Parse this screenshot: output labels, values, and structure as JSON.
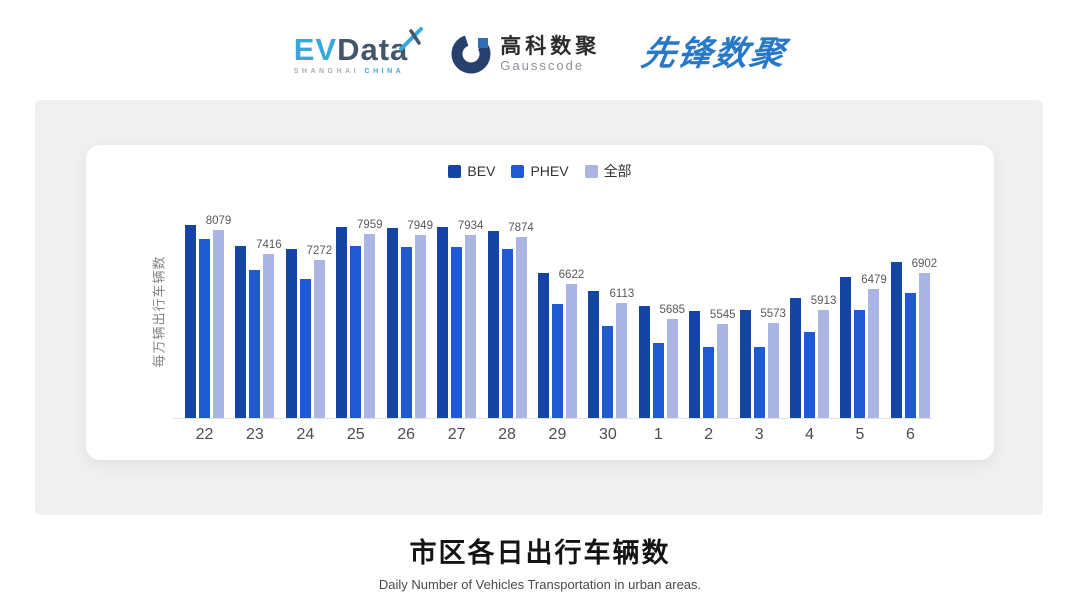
{
  "header": {
    "evdata": {
      "ev": "EV",
      "data": "Data",
      "sub_left": "SHANGHAI",
      "sub_right": "CHINA"
    },
    "gausscode": {
      "cn": "高科数聚",
      "en": "Gausscode"
    },
    "xianfeng": {
      "text": "先锋数聚"
    }
  },
  "footer": {
    "title": "市区各日出行车辆数",
    "subtitle": "Daily Number of Vehicles Transportation in urban areas."
  },
  "colors": {
    "evdata_cyan": "#38A8DA",
    "evdata_slate": "#44566A",
    "gauss_navy": "#27406E",
    "gauss_blue": "#2E6EB2",
    "gauss_text": "#2B2B2B",
    "gauss_sub": "#8C9198",
    "xianfeng_blue": "#2878C8",
    "panel_bg": "#F0F0F1",
    "axis_line": "#E4E4E6",
    "title_black": "#141414"
  },
  "chart_data": {
    "type": "bar",
    "categories": [
      "22",
      "23",
      "24",
      "25",
      "26",
      "27",
      "28",
      "29",
      "30",
      "1",
      "2",
      "3",
      "4",
      "5",
      "6"
    ],
    "series": [
      {
        "name": "BEV",
        "color": "#1445A5",
        "values": [
          8216,
          7644,
          7562,
          8162,
          8134,
          8162,
          8053,
          6908,
          6418,
          6036,
          5900,
          5927,
          6227,
          6799,
          7208
        ]
      },
      {
        "name": "PHEV",
        "color": "#1F5AD2",
        "values": [
          7835,
          6990,
          6745,
          7644,
          7617,
          7617,
          7562,
          6091,
          5491,
          5028,
          4919,
          4919,
          5328,
          5927,
          6363
        ]
      },
      {
        "name": "全部",
        "color": "#ABB5E3",
        "data_labels": true,
        "values": [
          8079,
          7416,
          7272,
          7959,
          7949,
          7934,
          7874,
          6622,
          6113,
          5685,
          5545,
          5573,
          5913,
          6479,
          6902
        ]
      }
    ],
    "title": "市区各日出行车辆数",
    "xlabel": "",
    "ylabel": "每万辆出行车辆数",
    "ylim": [
      3000,
      8400
    ],
    "grid": false,
    "legend_position": "top",
    "data_label_series": "全部"
  }
}
